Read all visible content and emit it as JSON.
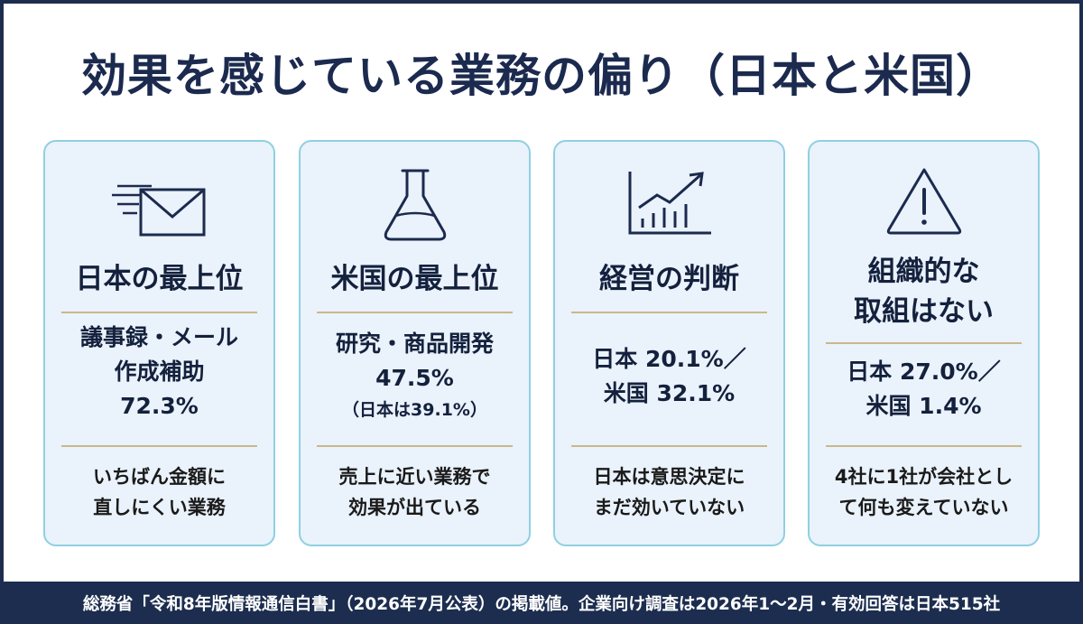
{
  "title": "効果を感じている業務の偏り（日本と米国）",
  "cards": [
    {
      "icon": "envelope-icon",
      "heading": "日本の最上位",
      "value_lines": [
        "議事録・メール",
        "作成補助",
        "72.3%"
      ],
      "note_lines": [
        "いちばん金額に",
        "直しにくい業務"
      ]
    },
    {
      "icon": "flask-icon",
      "heading": "米国の最上位",
      "value_lines": [
        "研究・商品開発",
        "47.5%"
      ],
      "value_sub": "（日本は39.1%）",
      "note_lines": [
        "売上に近い業務で",
        "効果が出ている"
      ]
    },
    {
      "icon": "growth-chart-icon",
      "heading": "経営の判断",
      "value_lines": [
        "日本 20.1%／",
        "米国 32.1%"
      ],
      "note_lines": [
        "日本は意思決定に",
        "まだ効いていない"
      ]
    },
    {
      "icon": "warning-icon",
      "heading_lines": [
        "組織的な",
        "取組はない"
      ],
      "value_lines": [
        "日本 27.0%／",
        "米国 1.4%"
      ],
      "note_lines": [
        "4社に1社が会社とし",
        "て何も変えていない"
      ]
    }
  ],
  "footer": "総務省「令和8年版情報通信白書」（2026年7月公表）の掲載値。企業向け調査は2026年1〜2月・有効回答は日本515社",
  "colors": {
    "navy": "#1c2d4f",
    "card_bg": "#eaf2fb",
    "card_border": "#8fd0e2",
    "rule": "#c9b98a"
  }
}
